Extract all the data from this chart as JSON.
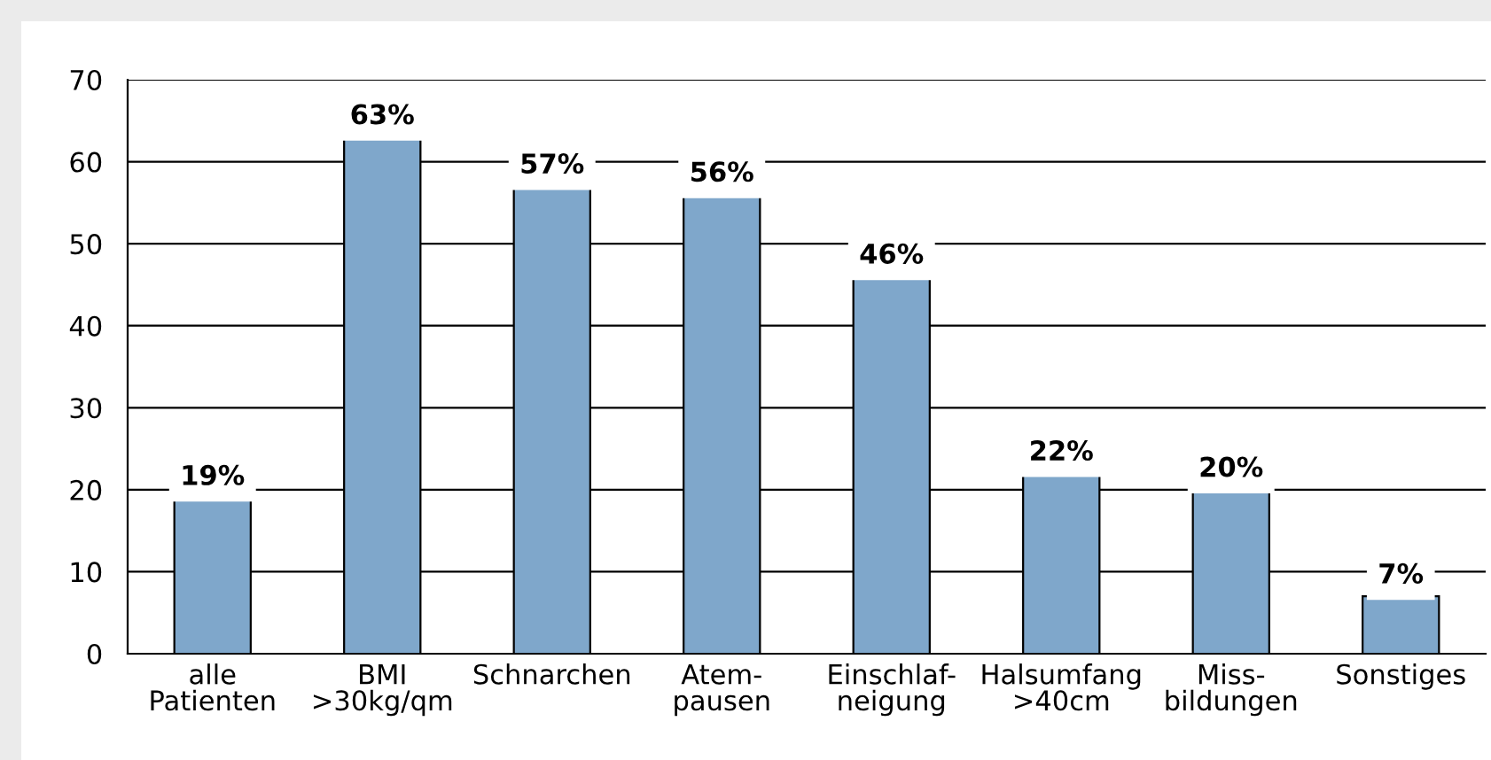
{
  "chart_data": {
    "type": "bar",
    "categories": [
      "alle\nPatienten",
      "BMI\n>30kg/qm",
      "Schnarchen",
      "Atem-\npausen",
      "Einschlaf-\nneigung",
      "Halsumfang\n>40cm",
      "Miss-\nbildungen",
      "Sonstiges"
    ],
    "values": [
      19,
      63,
      57,
      56,
      46,
      22,
      20,
      7
    ],
    "value_labels": [
      "19%",
      "63%",
      "57%",
      "56%",
      "46%",
      "22%",
      "20%",
      "7%"
    ],
    "color": "#7fa7cb",
    "ylim": [
      0,
      70
    ],
    "yticks": [
      0,
      10,
      20,
      30,
      40,
      50,
      60,
      70
    ],
    "grid": "y"
  }
}
